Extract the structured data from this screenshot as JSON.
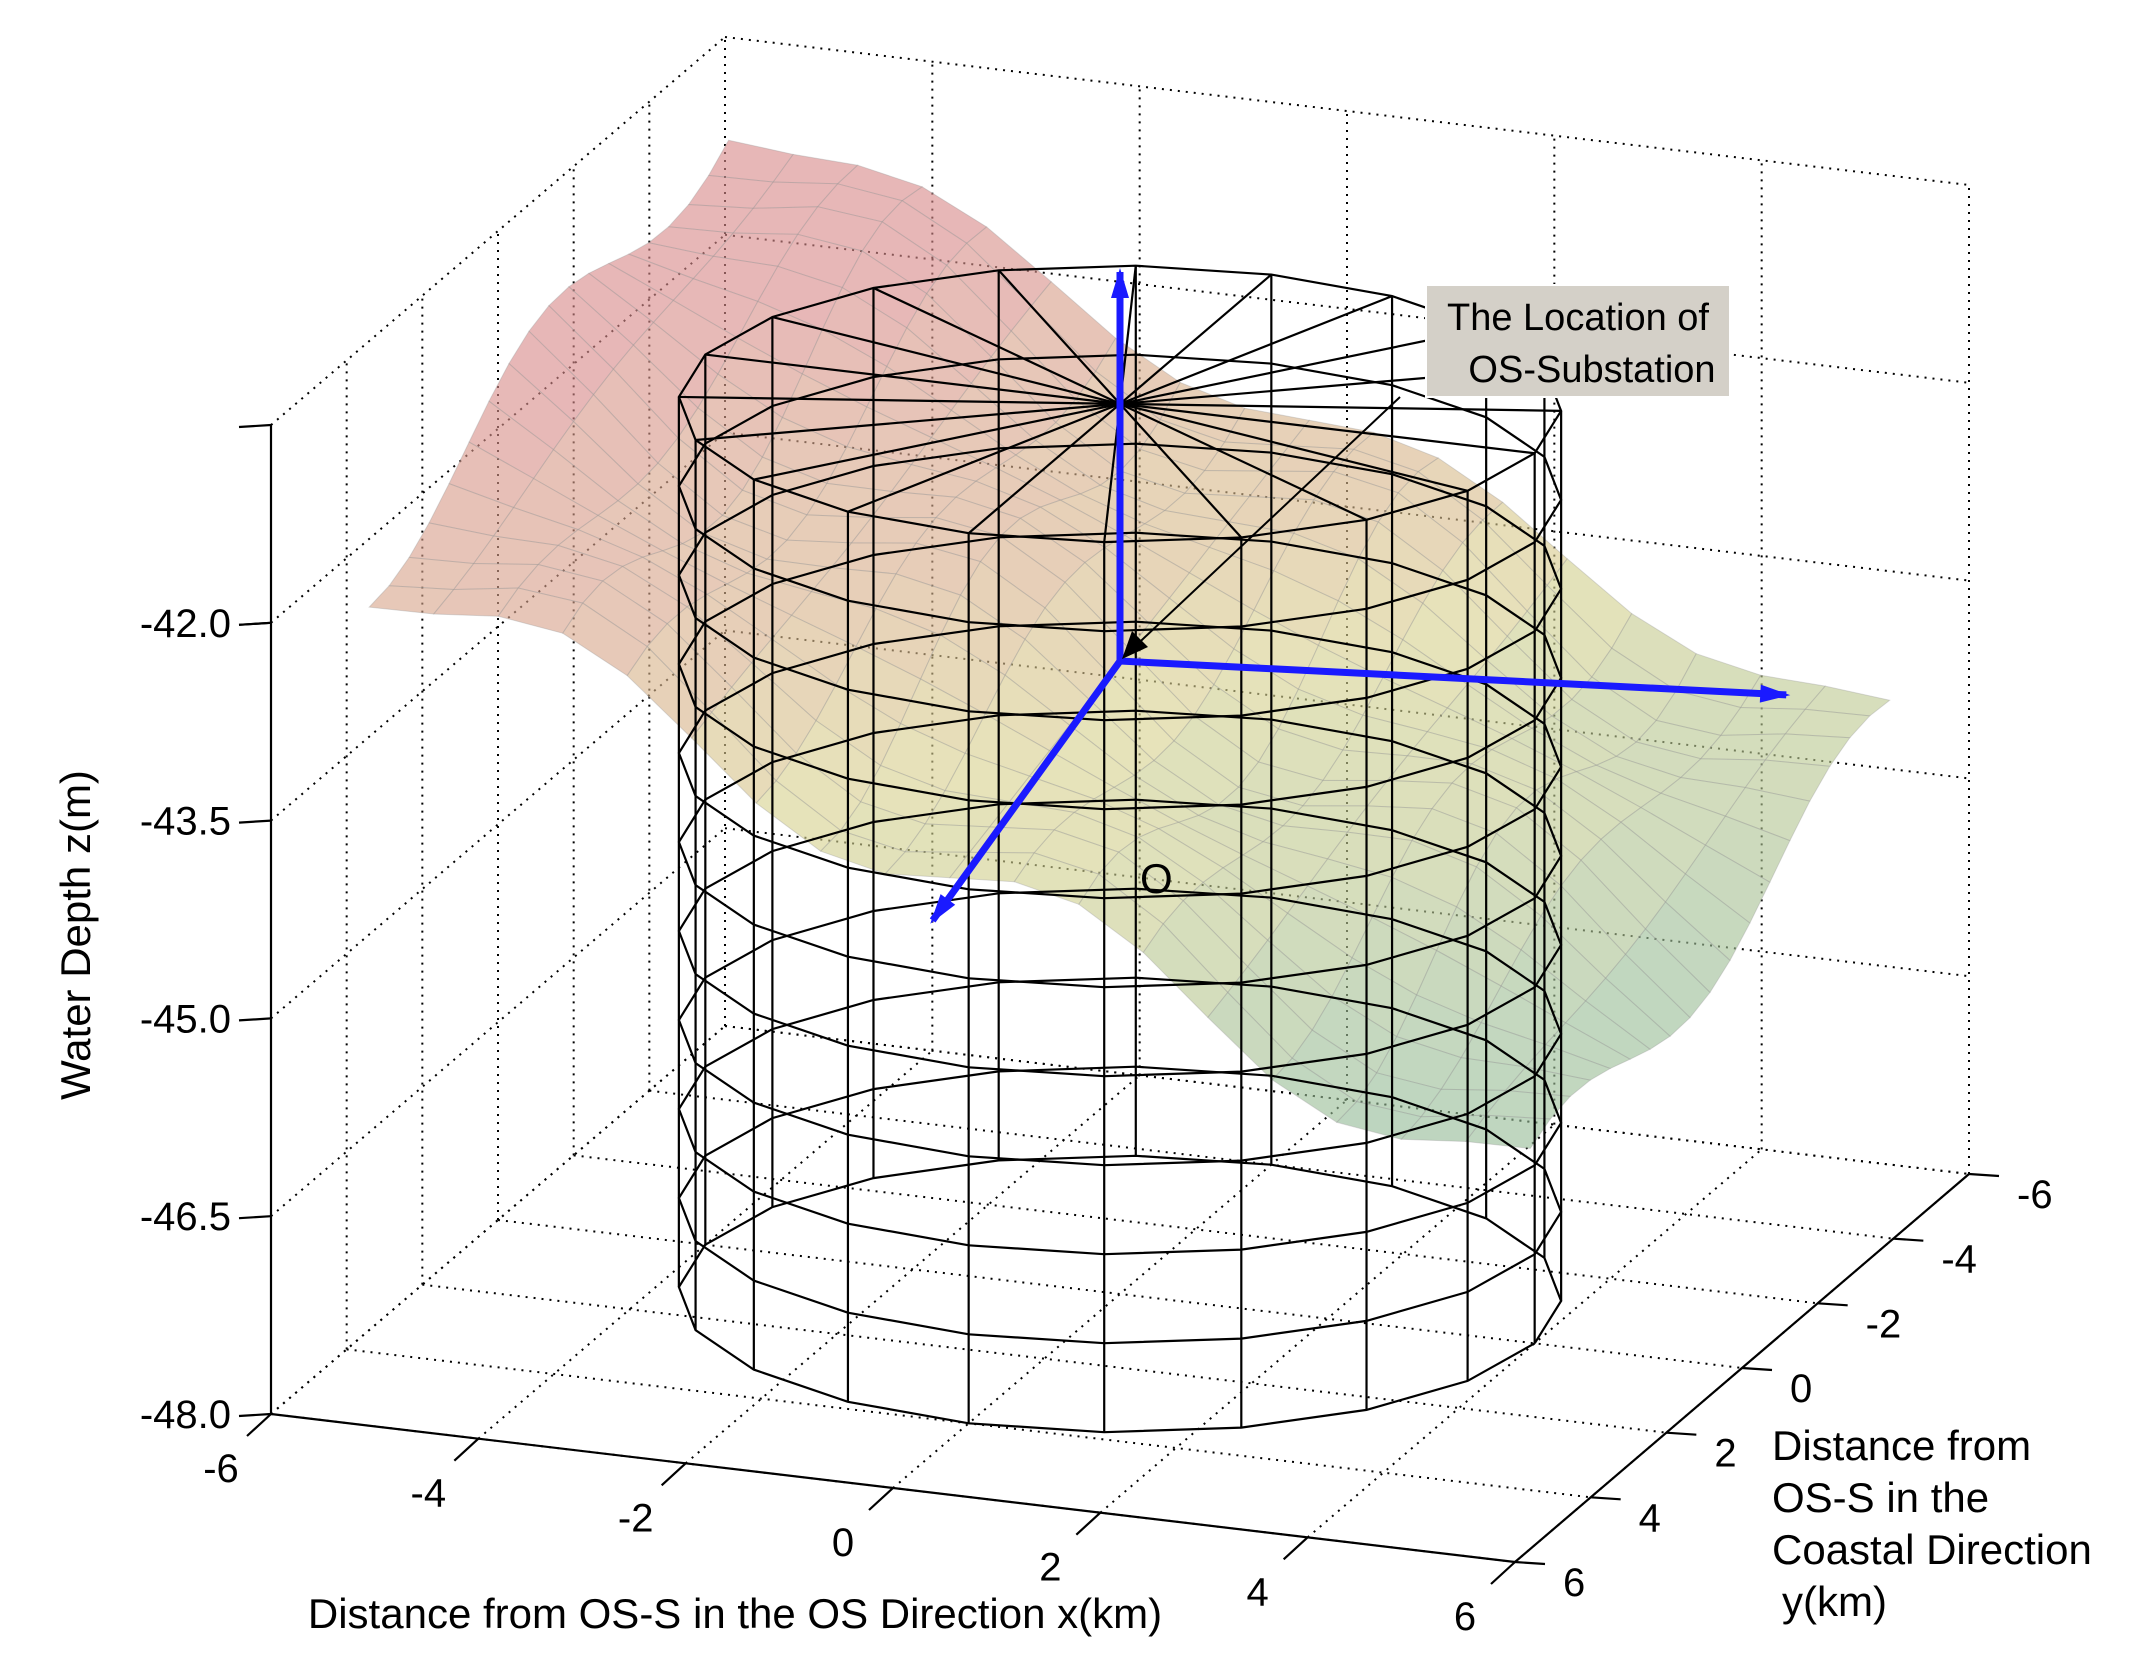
{
  "chart_data": {
    "type": "surface3d",
    "title": "",
    "xlabel": "Distance from OS-S in the OS Direction x(km)",
    "ylabel": [
      "Distance from",
      "OS-S in the",
      "Coastal Direction",
      "y(km)"
    ],
    "zlabel": "Water Depth z(m)",
    "xlim": [
      -6,
      6
    ],
    "ylim": [
      -6,
      6
    ],
    "zlim": [
      -48.0,
      -40.5
    ],
    "x_ticks": [
      "-6",
      "-4",
      "-2",
      "0",
      "2",
      "4",
      "6"
    ],
    "y_ticks": [
      "-6",
      "-4",
      "-2",
      "0",
      "2",
      "4",
      "6"
    ],
    "z_ticks": [
      "-42.0",
      "-43.5",
      "-45.0",
      "-46.5",
      "-48.0"
    ],
    "z_tick_values": [
      -42.0,
      -43.5,
      -45.0,
      -46.5,
      -48.0
    ],
    "grid": true,
    "origin_label": "O",
    "annotation": [
      "The Location of",
      "OS-Substation"
    ],
    "cylinder": {
      "radius_km": 4,
      "rings": 10,
      "segments": 20
    },
    "surface_colors": {
      "shallow": "#d88a8a",
      "middle": "#d8d28f",
      "deep": "#8ab89a"
    },
    "axis_arrow_color": "#1a1aff"
  }
}
